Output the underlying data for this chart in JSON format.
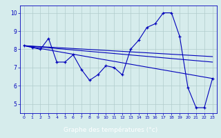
{
  "title": "",
  "xlabel": "Graphe des températures (°c)",
  "bg_color": "#d6ecec",
  "line_color": "#0000bb",
  "grid_color": "#b0cccc",
  "axis_label_color": "#0000bb",
  "xlabel_bg": "#0000bb",
  "xlabel_fg": "#ffffff",
  "xmin": -0.5,
  "xmax": 23.5,
  "ymin": 4.5,
  "ymax": 10.4,
  "yticks": [
    5,
    6,
    7,
    8,
    9,
    10
  ],
  "xticks": [
    0,
    1,
    2,
    3,
    4,
    5,
    6,
    7,
    8,
    9,
    10,
    11,
    12,
    13,
    14,
    15,
    16,
    17,
    18,
    19,
    20,
    21,
    22,
    23
  ],
  "series1_x": [
    0,
    1,
    2,
    3,
    4,
    5,
    6,
    7,
    8,
    9,
    10,
    11,
    12,
    13,
    14,
    15,
    16,
    17,
    18,
    19,
    20,
    21,
    22,
    23
  ],
  "series1_y": [
    8.2,
    8.1,
    8.0,
    8.6,
    7.3,
    7.3,
    7.7,
    6.9,
    6.3,
    6.6,
    7.1,
    7.0,
    6.6,
    8.0,
    8.5,
    9.2,
    9.4,
    10.0,
    10.0,
    8.7,
    5.9,
    4.8,
    4.8,
    6.4
  ],
  "series2_x": [
    0,
    23
  ],
  "series2_y": [
    8.2,
    6.4
  ],
  "series3_x": [
    0,
    23
  ],
  "series3_y": [
    8.2,
    7.3
  ],
  "series4_x": [
    0,
    23
  ],
  "series4_y": [
    8.2,
    7.6
  ]
}
